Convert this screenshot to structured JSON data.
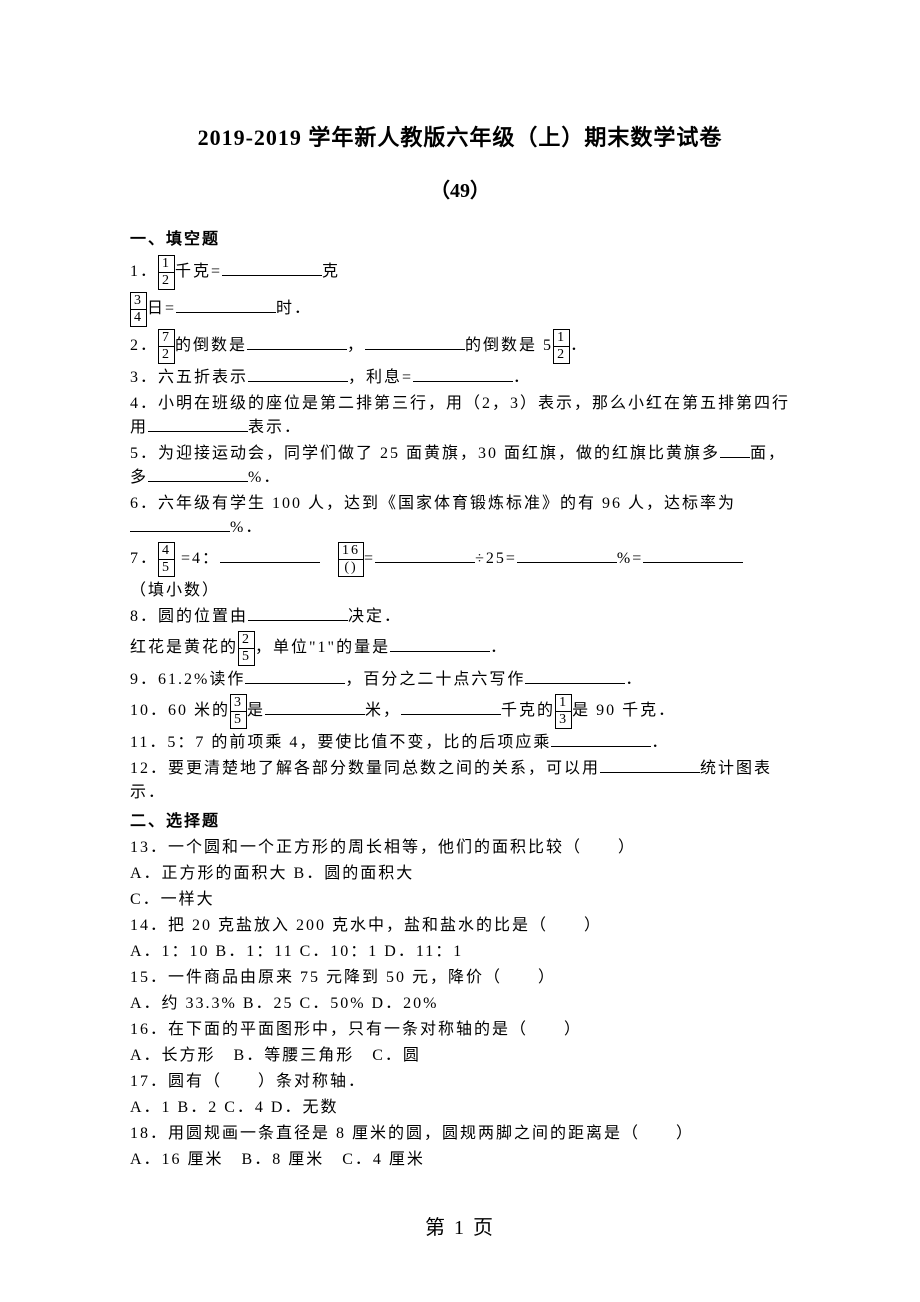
{
  "title": "2019-2019 学年新人教版六年级（上）期末数学试卷",
  "subtitle": "（49）",
  "section1": "一、填空题",
  "section2": "二、选择题",
  "q1_a": "1．",
  "q1_a_unit1": "千克=",
  "q1_a_unit2": "克",
  "q1_b_unit1": "日=",
  "q1_b_unit2": "时．",
  "q2_a": "2．",
  "q2_b": "的倒数是",
  "q2_c": "，",
  "q2_d": "的倒数是 5",
  "q2_e": "．",
  "q3": "3．六五折表示",
  "q3_b": "，利息=",
  "q3_c": "．",
  "q4": "4．小明在班级的座位是第二排第三行，用（2，3）表示，那么小红在第五排第四行用",
  "q4_b": "表示．",
  "q5": "5．为迎接运动会，同学们做了 25 面黄旗，30 面红旗，做的红旗比黄旗多",
  "q5_b": "面，多",
  "q5_c": "%．",
  "q6": "6．六年级有学生 100 人，达到《国家体育锻炼标准》的有 96 人，达标率为",
  "q6_b": "%．",
  "q7_a": "7．",
  "q7_b": " =4：",
  "q7_c": "=",
  "q7_d": "÷25=",
  "q7_e": "%=",
  "q7_f": "（填小数）",
  "q8_a": "8．圆的位置由",
  "q8_b": "决定．",
  "q8_c": "红花是黄花的",
  "q8_d": "，单位\"1\"的量是",
  "q8_e": "．",
  "q9_a": "9．61.2%读作",
  "q9_b": "，百分之二十点六写作",
  "q9_c": "．",
  "q10_a": "10．60 米的",
  "q10_b": "是",
  "q10_c": "米，",
  "q10_d": "千克的",
  "q10_e": "是 90 千克．",
  "q11_a": "11．5：7 的前项乘 4，要使比值不变，比的后项应乘",
  "q11_b": "．",
  "q12_a": "12．要更清楚地了解各部分数量同总数之间的关系，可以用",
  "q12_b": "统计图表示．",
  "q13": "13．一个圆和一个正方形的周长相等，他们的面积比较（　　）",
  "q13_opts": "A．正方形的面积大  B．圆的面积大",
  "q13_opts2": "C．一样大",
  "q14": "14．把 20 克盐放入 200 克水中，盐和盐水的比是（　　）",
  "q14_opts": "A．1：10 B．1：11 C．10：1 D．11：1",
  "q15": "15．一件商品由原来 75 元降到 50 元，降价（　　）",
  "q15_opts": "A．约 33.3% B．25 C．50% D．20%",
  "q16": "16．在下面的平面图形中，只有一条对称轴的是（　　）",
  "q16_opts": "A．长方形　B．等腰三角形　C．圆",
  "q17": "17．圆有（　　）条对称轴．",
  "q17_opts": "A．1 B．2 C．4 D．无数",
  "q18": "18．用圆规画一条直径是 8 厘米的圆，圆规两脚之间的距离是（　　）",
  "q18_opts": "A．16 厘米　B．8 厘米　C．4 厘米",
  "footer": "第 1 页",
  "frac_1_2_n": "1",
  "frac_1_2_d": "2",
  "frac_3_4_n": "3",
  "frac_3_4_d": "4",
  "frac_7_2_n": "7",
  "frac_7_2_d": "2",
  "frac_4_5_n": "4",
  "frac_4_5_d": "5",
  "frac_16_p_n": "16",
  "frac_16_p_d": "()",
  "frac_2_5_n": "2",
  "frac_2_5_d": "5",
  "frac_3_5_n": "3",
  "frac_3_5_d": "5",
  "frac_1_3_n": "1",
  "frac_1_3_d": "3"
}
